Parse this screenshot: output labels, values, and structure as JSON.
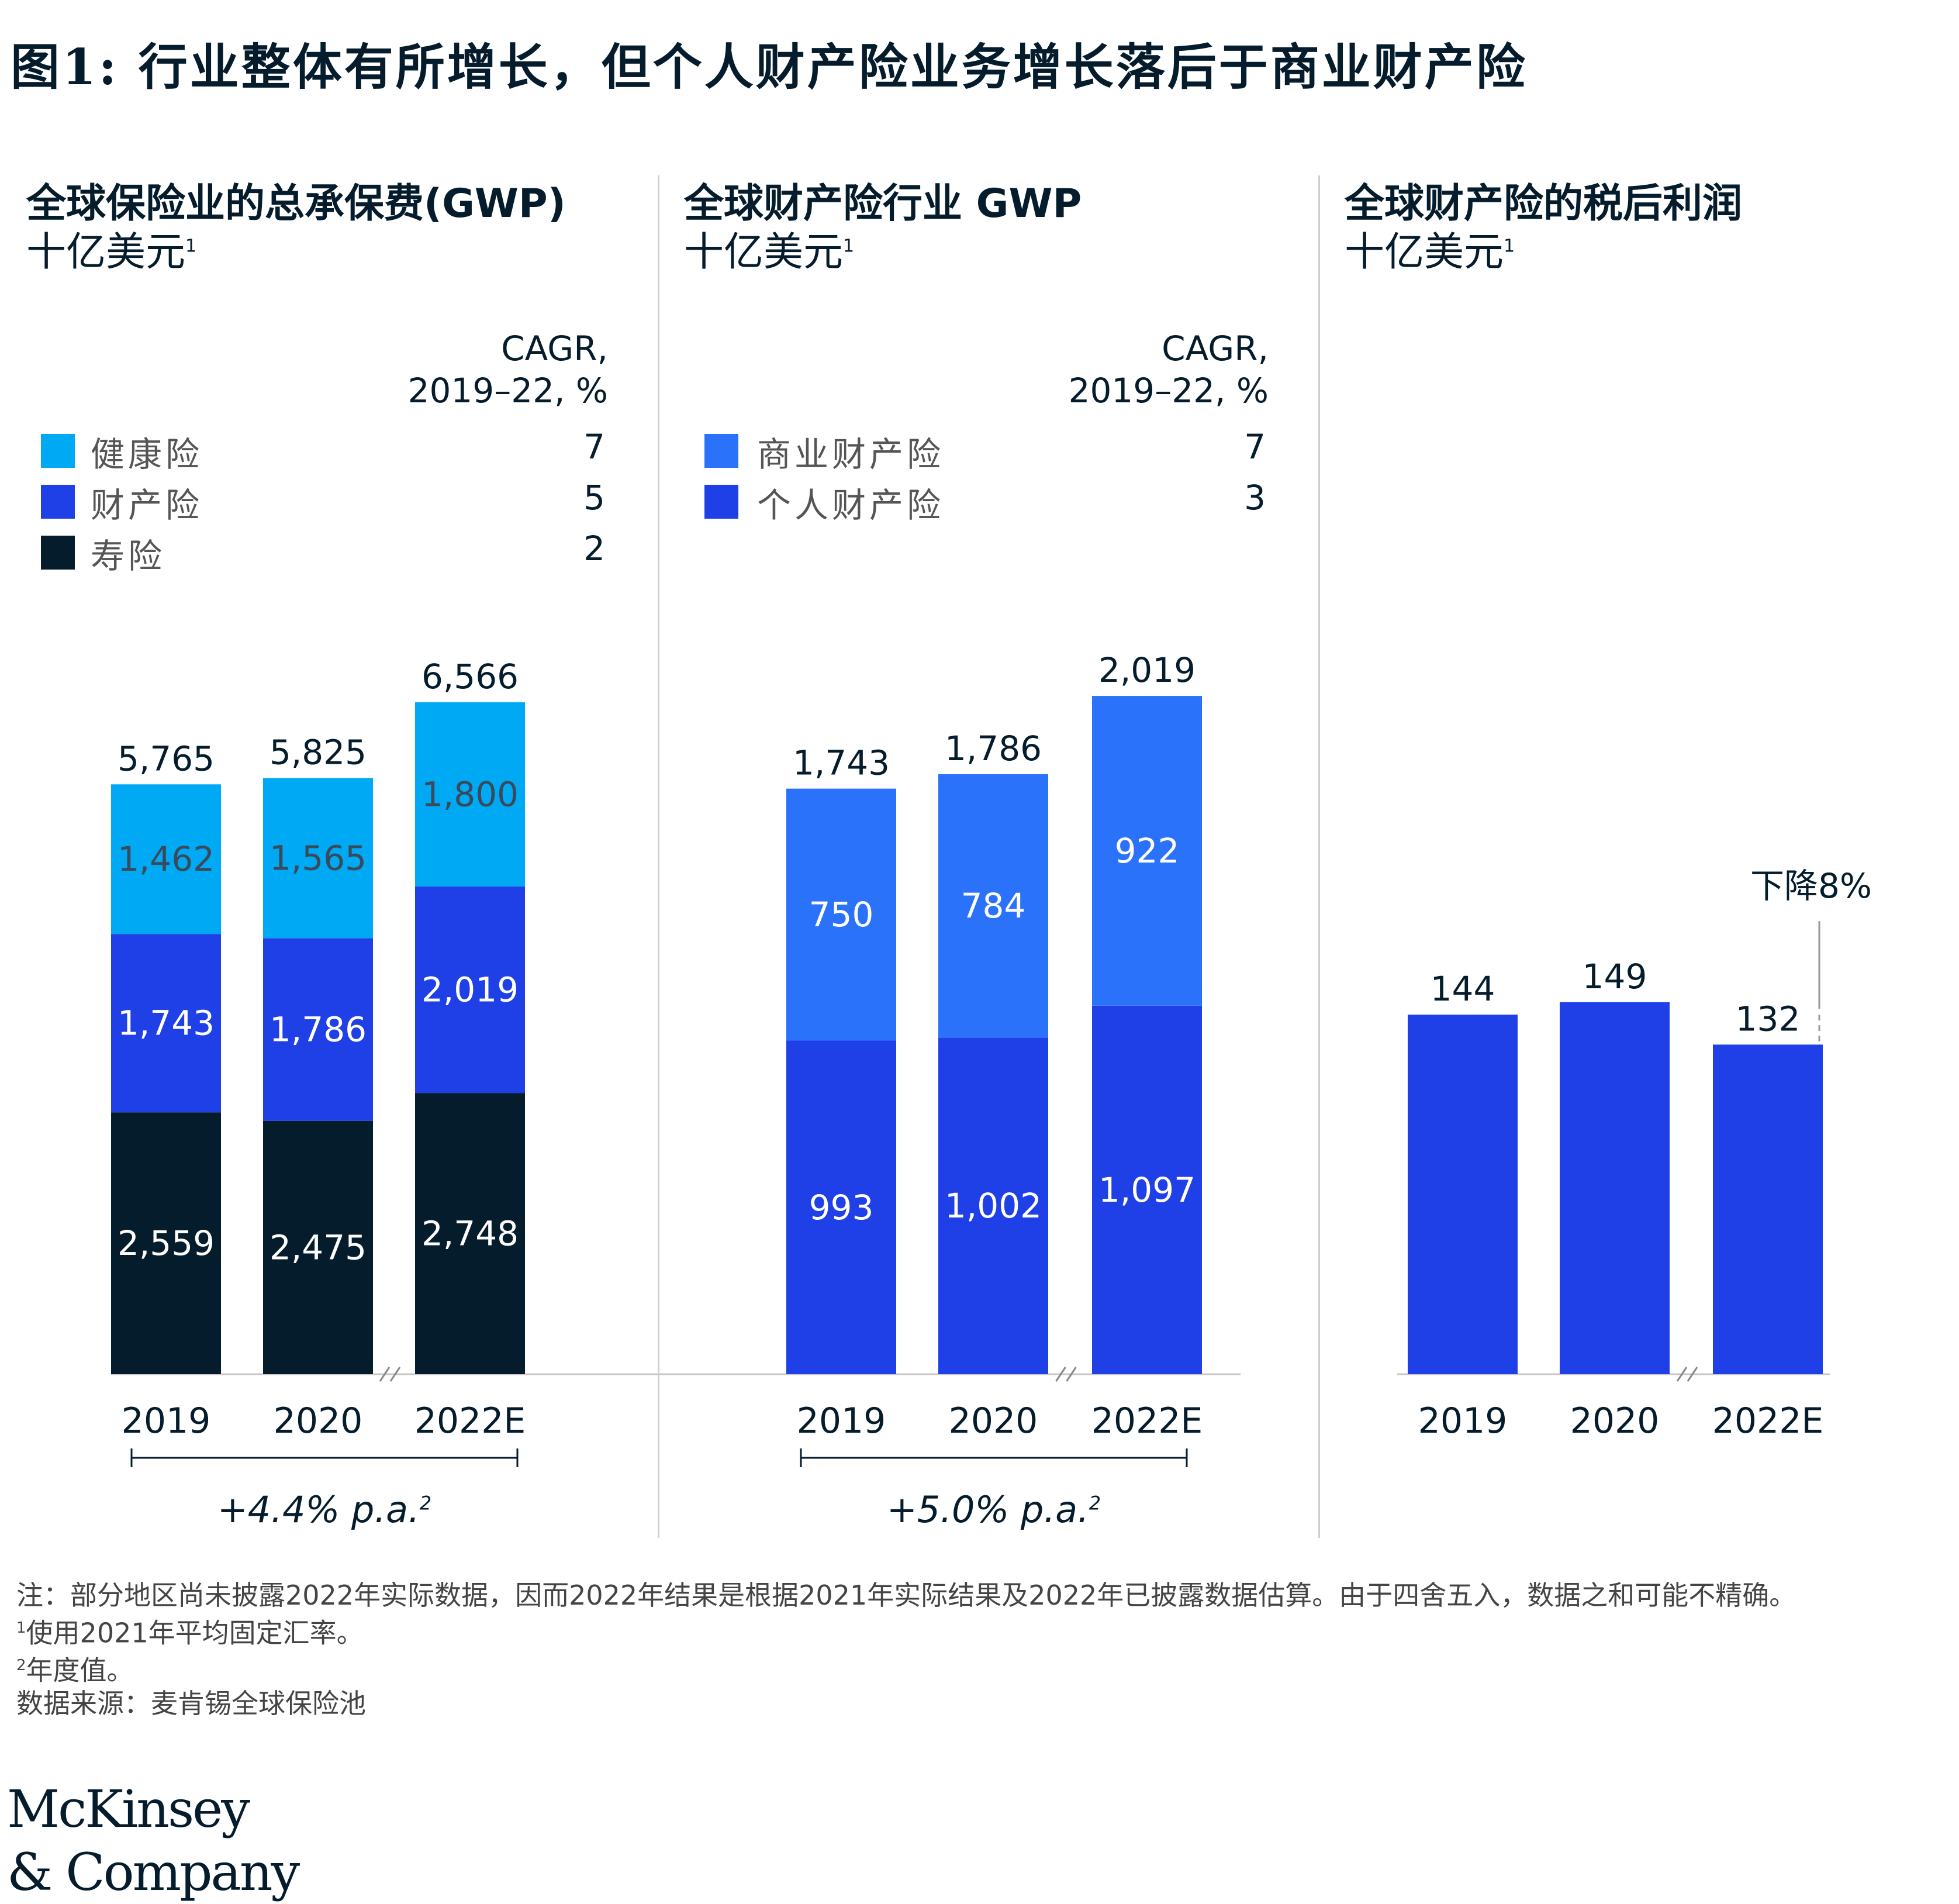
{
  "title": "图1: 行业整体有所增长，但个人财产险业务增长落后于商业财产险",
  "colors": {
    "health": "#00a9f4",
    "property": "#1f40e6",
    "life": "#051c2c",
    "commercial": "#2b72fb",
    "personal": "#1f40e6",
    "profit": "#1f40e6"
  },
  "panels": [
    {
      "title": "全球保险业的总承保费(GWP)",
      "unit": "十亿美元",
      "unit_note": "1",
      "cagr_header_1": "CAGR,",
      "cagr_header_2": "2019–22, %",
      "legend": [
        {
          "label": "健康险",
          "value": "7"
        },
        {
          "label": "财产险",
          "value": "5"
        },
        {
          "label": "寿险",
          "value": "2"
        }
      ],
      "cagr_bar": "+4.4% p.a.",
      "cagr_bar_note": "2"
    },
    {
      "title": "全球财产险行业 GWP",
      "unit": "十亿美元",
      "unit_note": "1",
      "cagr_header_1": "CAGR,",
      "cagr_header_2": "2019–22, %",
      "legend": [
        {
          "label": "商业财产险",
          "value": "7"
        },
        {
          "label": "个人财产险",
          "value": "3"
        }
      ],
      "cagr_bar": "+5.0% p.a.",
      "cagr_bar_note": "2"
    },
    {
      "title": "全球财产险的税后利润",
      "unit": "十亿美元",
      "unit_note": "1",
      "annotation": "下降8%"
    }
  ],
  "chart_data": [
    {
      "type": "bar",
      "stacked": true,
      "categories": [
        "2019",
        "2020",
        "2022E"
      ],
      "series": [
        {
          "name": "寿险",
          "values": [
            2559,
            2475,
            2748
          ]
        },
        {
          "name": "财产险",
          "values": [
            1743,
            1786,
            2019
          ]
        },
        {
          "name": "健康险",
          "values": [
            1462,
            1565,
            1800
          ]
        }
      ],
      "totals": [
        5765,
        5825,
        6566
      ],
      "total_labels": [
        "5,765",
        "5,825",
        "6,566"
      ],
      "segment_labels": [
        [
          "2,559",
          "2,475",
          "2,748"
        ],
        [
          "1,743",
          "1,786",
          "2,019"
        ],
        [
          "1,462",
          "1,565",
          "1,800"
        ]
      ]
    },
    {
      "type": "bar",
      "stacked": true,
      "categories": [
        "2019",
        "2020",
        "2022E"
      ],
      "series": [
        {
          "name": "个人财产险",
          "values": [
            993,
            1002,
            1097
          ]
        },
        {
          "name": "商业财产险",
          "values": [
            750,
            784,
            922
          ]
        }
      ],
      "totals": [
        1743,
        1786,
        2019
      ],
      "total_labels": [
        "1,743",
        "1,786",
        "2,019"
      ],
      "segment_labels": [
        [
          "993",
          "1,002",
          "1,097"
        ],
        [
          "750",
          "784",
          "922"
        ]
      ]
    },
    {
      "type": "bar",
      "categories": [
        "2019",
        "2020",
        "2022E"
      ],
      "values": [
        144,
        149,
        132
      ],
      "value_labels": [
        "144",
        "149",
        "132"
      ]
    }
  ],
  "notes": {
    "main": "注：部分地区尚未披露2022年实际数据，因而2022年结果是根据2021年实际结果及2022年已披露数据估算。由于四舍五入，数据之和可能不精确。",
    "n1_mark": "1",
    "n1": "使用2021年平均固定汇率。",
    "n2_mark": "2",
    "n2": "年度值。",
    "source": "数据来源：麦肯锡全球保险池"
  },
  "logo": {
    "line1": "McKinsey",
    "line2": "& Company"
  }
}
